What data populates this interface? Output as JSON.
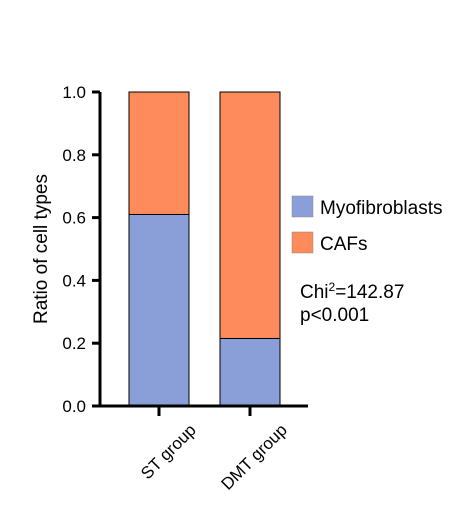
{
  "chart_data": {
    "type": "bar",
    "stacked": true,
    "categories": [
      "ST group",
      "DMT group"
    ],
    "series": [
      {
        "name": "Myofibroblasts",
        "values": [
          0.61,
          0.215
        ],
        "color": "#8a9fd8"
      },
      {
        "name": "CAFs",
        "values": [
          0.39,
          0.785
        ],
        "color": "#fe8b5b"
      }
    ],
    "xlabel": "",
    "ylabel": "Ratio of cell types",
    "ylim": [
      0,
      1.0
    ],
    "yticks": [
      "0.0",
      "0.2",
      "0.4",
      "0.6",
      "0.8",
      "1.0"
    ],
    "legend_position": "right",
    "grid": false,
    "annotation": {
      "line1_prefix": "Chi",
      "line1_sup": "2",
      "line1_suffix": "=142.87",
      "line2": "p<0.001"
    }
  }
}
